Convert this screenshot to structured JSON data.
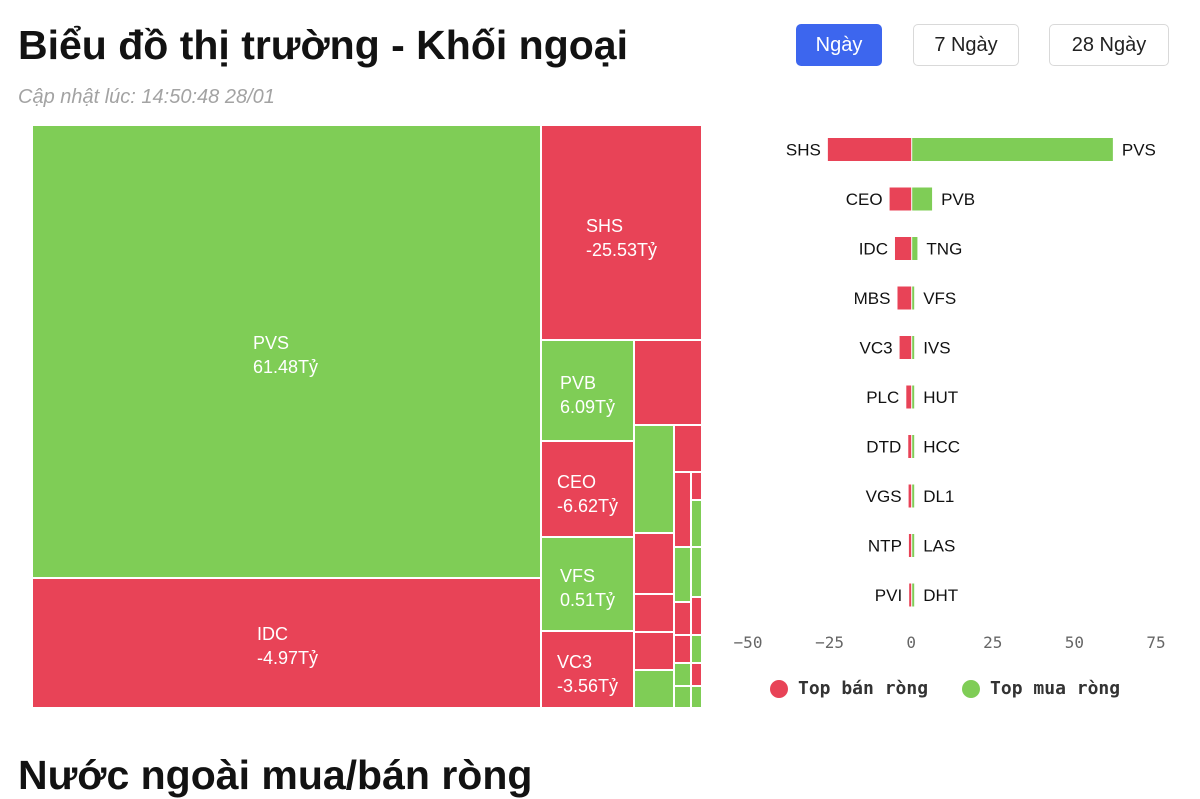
{
  "header": {
    "title": "Biểu đồ thị trường - Khối ngoại",
    "updated": "Cập nhật lúc: 14:50:48 28/01"
  },
  "period_tabs": [
    {
      "label": "Ngày",
      "active": true
    },
    {
      "label": "7 Ngày",
      "active": false
    },
    {
      "label": "28 Ngày",
      "active": false
    }
  ],
  "colors": {
    "buy": "#7fcd56",
    "sell": "#e84357",
    "accent": "#3d66ee"
  },
  "treemap": {
    "labeled_cells": [
      {
        "ticker": "PVS",
        "value": "61.48Tỷ",
        "side": "buy"
      },
      {
        "ticker": "SHS",
        "value": "-25.53Tỷ",
        "side": "sell"
      },
      {
        "ticker": "IDC",
        "value": "-4.97Tỷ",
        "side": "sell"
      },
      {
        "ticker": "PVB",
        "value": "6.09Tỷ",
        "side": "buy"
      },
      {
        "ticker": "CEO",
        "value": "-6.62Tỷ",
        "side": "sell"
      },
      {
        "ticker": "VFS",
        "value": "0.51Tỷ",
        "side": "buy"
      },
      {
        "ticker": "VC3",
        "value": "-3.56Tỷ",
        "side": "sell"
      }
    ]
  },
  "chart_data": {
    "type": "bar",
    "orientation": "horizontal-diverging",
    "xlim": [
      -50,
      75
    ],
    "x_ticks": [
      "−50",
      "−25",
      "0",
      "25",
      "50",
      "75"
    ],
    "rows": [
      {
        "sell": "SHS",
        "sell_value": -25.53,
        "buy": "PVS",
        "buy_value": 61.48
      },
      {
        "sell": "CEO",
        "sell_value": -6.62,
        "buy": "PVB",
        "buy_value": 6.09
      },
      {
        "sell": "IDC",
        "sell_value": -4.97,
        "buy": "TNG",
        "buy_value": 1.6
      },
      {
        "sell": "MBS",
        "sell_value": -4.2,
        "buy": "VFS",
        "buy_value": 0.51
      },
      {
        "sell": "VC3",
        "sell_value": -3.56,
        "buy": "IVS",
        "buy_value": 0.35
      },
      {
        "sell": "PLC",
        "sell_value": -1.5,
        "buy": "HUT",
        "buy_value": 0.25
      },
      {
        "sell": "DTD",
        "sell_value": -0.9,
        "buy": "HCC",
        "buy_value": 0.15
      },
      {
        "sell": "VGS",
        "sell_value": -0.8,
        "buy": "DL1",
        "buy_value": 0.1
      },
      {
        "sell": "NTP",
        "sell_value": -0.7,
        "buy": "LAS",
        "buy_value": 0.08
      },
      {
        "sell": "PVI",
        "sell_value": -0.3,
        "buy": "DHT",
        "buy_value": 0.05
      }
    ],
    "legend": [
      {
        "label": "Top bán ròng",
        "color": "#e84357"
      },
      {
        "label": "Top mua ròng",
        "color": "#7fcd56"
      }
    ]
  },
  "next_section": {
    "title": "Nước ngoài mua/bán ròng"
  }
}
